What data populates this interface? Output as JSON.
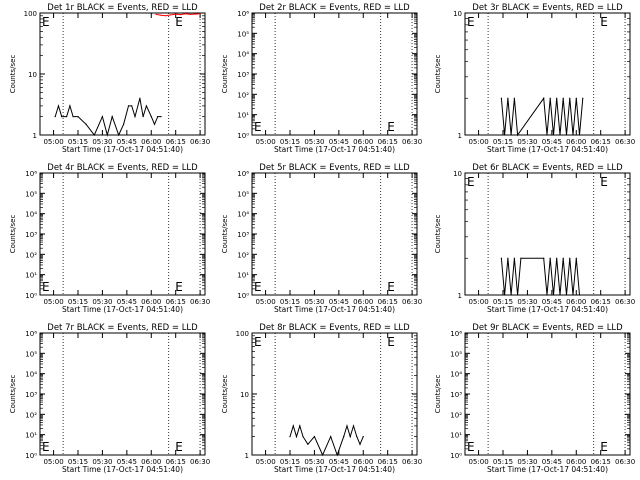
{
  "chart_data": [
    {
      "type": "line",
      "title": "Det 1r BLACK = Events, RED = LLD",
      "xlabel": "Start Time (17-Oct-17 04:51:40)",
      "ylabel": "Counts/sec",
      "yscale": "log",
      "ylim": [
        1,
        100
      ],
      "yticks": [
        "1",
        "10",
        "100"
      ],
      "xticks": [
        "05:00",
        "05:15",
        "05:30",
        "05:45",
        "06:00",
        "06:15",
        "06:30"
      ],
      "markers": [
        "E",
        "E"
      ],
      "series": [
        {
          "name": "Events",
          "color": "#000000",
          "x": [
            "05:01",
            "05:03",
            "05:05",
            "05:08",
            "05:10",
            "05:12",
            "05:15",
            "05:20",
            "05:25",
            "05:30",
            "05:33",
            "05:36",
            "05:40",
            "05:43",
            "05:46",
            "05:48",
            "05:50",
            "05:53",
            "05:55",
            "05:57",
            "06:00",
            "06:02",
            "06:04",
            "06:06"
          ],
          "values": [
            2,
            3,
            2,
            2,
            3,
            2,
            2,
            1.5,
            1,
            2,
            1,
            2,
            1,
            1.5,
            3,
            3,
            2,
            4,
            2,
            3,
            2,
            1.5,
            2,
            2
          ]
        },
        {
          "name": "LLD",
          "color": "#ff0000",
          "x": [
            "06:03",
            "06:06",
            "06:09",
            "06:12",
            "06:15",
            "06:18",
            "06:21",
            "06:24",
            "06:27",
            "06:30"
          ],
          "values": [
            95,
            92,
            90,
            93,
            96,
            94,
            97,
            95,
            96,
            97
          ]
        }
      ]
    },
    {
      "type": "line",
      "title": "Det 2r BLACK = Events, RED = LLD",
      "xlabel": "Start Time (17-Oct-17 04:51:40)",
      "ylabel": "Counts/sec",
      "yscale": "log",
      "ylim": [
        1,
        1000000
      ],
      "yticks": [
        "10⁰",
        "10¹",
        "10²",
        "10³",
        "10⁴",
        "10⁵",
        "10⁶"
      ],
      "xticks": [
        "05:00",
        "05:15",
        "05:30",
        "05:45",
        "06:00",
        "06:15",
        "06:30"
      ],
      "markers": [
        "E",
        "E"
      ],
      "series": []
    },
    {
      "type": "line",
      "title": "Det 3r BLACK = Events, RED = LLD",
      "xlabel": "Start Time (17-Oct-17 04:51:40)",
      "ylabel": "Counts/sec",
      "yscale": "log",
      "ylim": [
        1,
        10
      ],
      "yticks": [
        "1",
        "10"
      ],
      "xticks": [
        "05:00",
        "05:15",
        "05:30",
        "05:45",
        "06:00",
        "06:15",
        "06:30"
      ],
      "markers": [
        "E",
        "E"
      ],
      "series": [
        {
          "name": "Events",
          "color": "#000000",
          "x": [
            "05:14",
            "05:16",
            "05:18",
            "05:20",
            "05:22",
            "05:24",
            "05:40",
            "05:42",
            "05:44",
            "05:46",
            "05:48",
            "05:50",
            "05:52",
            "05:54",
            "05:56",
            "05:58",
            "06:00",
            "06:02",
            "06:04"
          ],
          "values": [
            2,
            1,
            2,
            1,
            2,
            1,
            2,
            1,
            2,
            1,
            2,
            1,
            2,
            1,
            2,
            1,
            2,
            1,
            2
          ]
        }
      ]
    },
    {
      "type": "line",
      "title": "Det 4r BLACK = Events, RED = LLD",
      "xlabel": "Start Time (17-Oct-17 04:51:40)",
      "ylabel": "Counts/sec",
      "yscale": "log",
      "ylim": [
        1,
        1000000
      ],
      "yticks": [
        "10⁰",
        "10¹",
        "10²",
        "10³",
        "10⁴",
        "10⁵",
        "10⁶"
      ],
      "xticks": [
        "05:00",
        "05:15",
        "05:30",
        "05:45",
        "06:00",
        "06:15",
        "06:30"
      ],
      "markers": [
        "E",
        "E"
      ],
      "series": []
    },
    {
      "type": "line",
      "title": "Det 5r BLACK = Events, RED = LLD",
      "xlabel": "Start Time (17-Oct-17 04:51:40)",
      "ylabel": "Counts/sec",
      "yscale": "log",
      "ylim": [
        1,
        1000000
      ],
      "yticks": [
        "10⁰",
        "10¹",
        "10²",
        "10³",
        "10⁴",
        "10⁵",
        "10⁶"
      ],
      "xticks": [
        "05:00",
        "05:15",
        "05:30",
        "05:45",
        "06:00",
        "06:15",
        "06:30"
      ],
      "markers": [
        "E",
        "E"
      ],
      "series": []
    },
    {
      "type": "line",
      "title": "Det 6r BLACK = Events, RED = LLD",
      "xlabel": "Start Time (17-Oct-17 04:51:40)",
      "ylabel": "Counts/sec",
      "yscale": "log",
      "ylim": [
        1,
        10
      ],
      "yticks": [
        "1",
        "10"
      ],
      "xticks": [
        "05:00",
        "05:15",
        "05:30",
        "05:45",
        "06:00",
        "06:15",
        "06:30"
      ],
      "markers": [
        "E",
        "E"
      ],
      "series": [
        {
          "name": "Events",
          "color": "#000000",
          "x": [
            "05:14",
            "05:16",
            "05:18",
            "05:20",
            "05:22",
            "05:24",
            "05:26",
            "05:40",
            "05:42",
            "05:44",
            "05:46",
            "05:48",
            "05:50",
            "05:52",
            "05:54",
            "05:56",
            "05:58",
            "06:00",
            "06:02"
          ],
          "values": [
            2,
            1,
            2,
            1,
            2,
            1,
            2,
            2,
            1,
            2,
            1,
            2,
            1,
            2,
            1,
            2,
            1,
            2,
            1
          ]
        }
      ]
    },
    {
      "type": "line",
      "title": "Det 7r BLACK = Events, RED = LLD",
      "xlabel": "Start Time (17-Oct-17 04:51:40)",
      "ylabel": "Counts/sec",
      "yscale": "log",
      "ylim": [
        1,
        1000000
      ],
      "yticks": [
        "10⁰",
        "10¹",
        "10²",
        "10³",
        "10⁴",
        "10⁵",
        "10⁶"
      ],
      "xticks": [
        "05:00",
        "05:15",
        "05:30",
        "05:45",
        "06:00",
        "06:15",
        "06:30"
      ],
      "markers": [
        "E",
        "E"
      ],
      "series": []
    },
    {
      "type": "line",
      "title": "Det 8r BLACK = Events, RED = LLD",
      "xlabel": "Start Time (17-Oct-17 04:51:40)",
      "ylabel": "Counts/sec",
      "yscale": "log",
      "ylim": [
        1,
        100
      ],
      "yticks": [
        "1",
        "10",
        "100"
      ],
      "xticks": [
        "05:00",
        "05:15",
        "05:30",
        "05:45",
        "06:00",
        "06:15",
        "06:30"
      ],
      "markers": [
        "E",
        "E"
      ],
      "series": [
        {
          "name": "Events",
          "color": "#000000",
          "x": [
            "05:15",
            "05:17",
            "05:19",
            "05:21",
            "05:23",
            "05:26",
            "05:30",
            "05:35",
            "05:40",
            "05:44",
            "05:48",
            "05:50",
            "05:52",
            "05:54",
            "05:56",
            "05:58",
            "06:00"
          ],
          "values": [
            2,
            3,
            2,
            3,
            2,
            1.5,
            2,
            1,
            2,
            1,
            2,
            3,
            2,
            3,
            2,
            1.5,
            2
          ]
        }
      ]
    },
    {
      "type": "line",
      "title": "Det 9r BLACK = Events, RED = LLD",
      "xlabel": "Start Time (17-Oct-17 04:51:40)",
      "ylabel": "Counts/sec",
      "yscale": "log",
      "ylim": [
        1,
        1000000
      ],
      "yticks": [
        "10⁰",
        "10¹",
        "10²",
        "10³",
        "10⁴",
        "10⁵",
        "10⁶"
      ],
      "xticks": [
        "05:00",
        "05:15",
        "05:30",
        "05:45",
        "06:00",
        "06:15",
        "06:30"
      ],
      "markers": [
        "E",
        "E"
      ],
      "series": []
    }
  ]
}
